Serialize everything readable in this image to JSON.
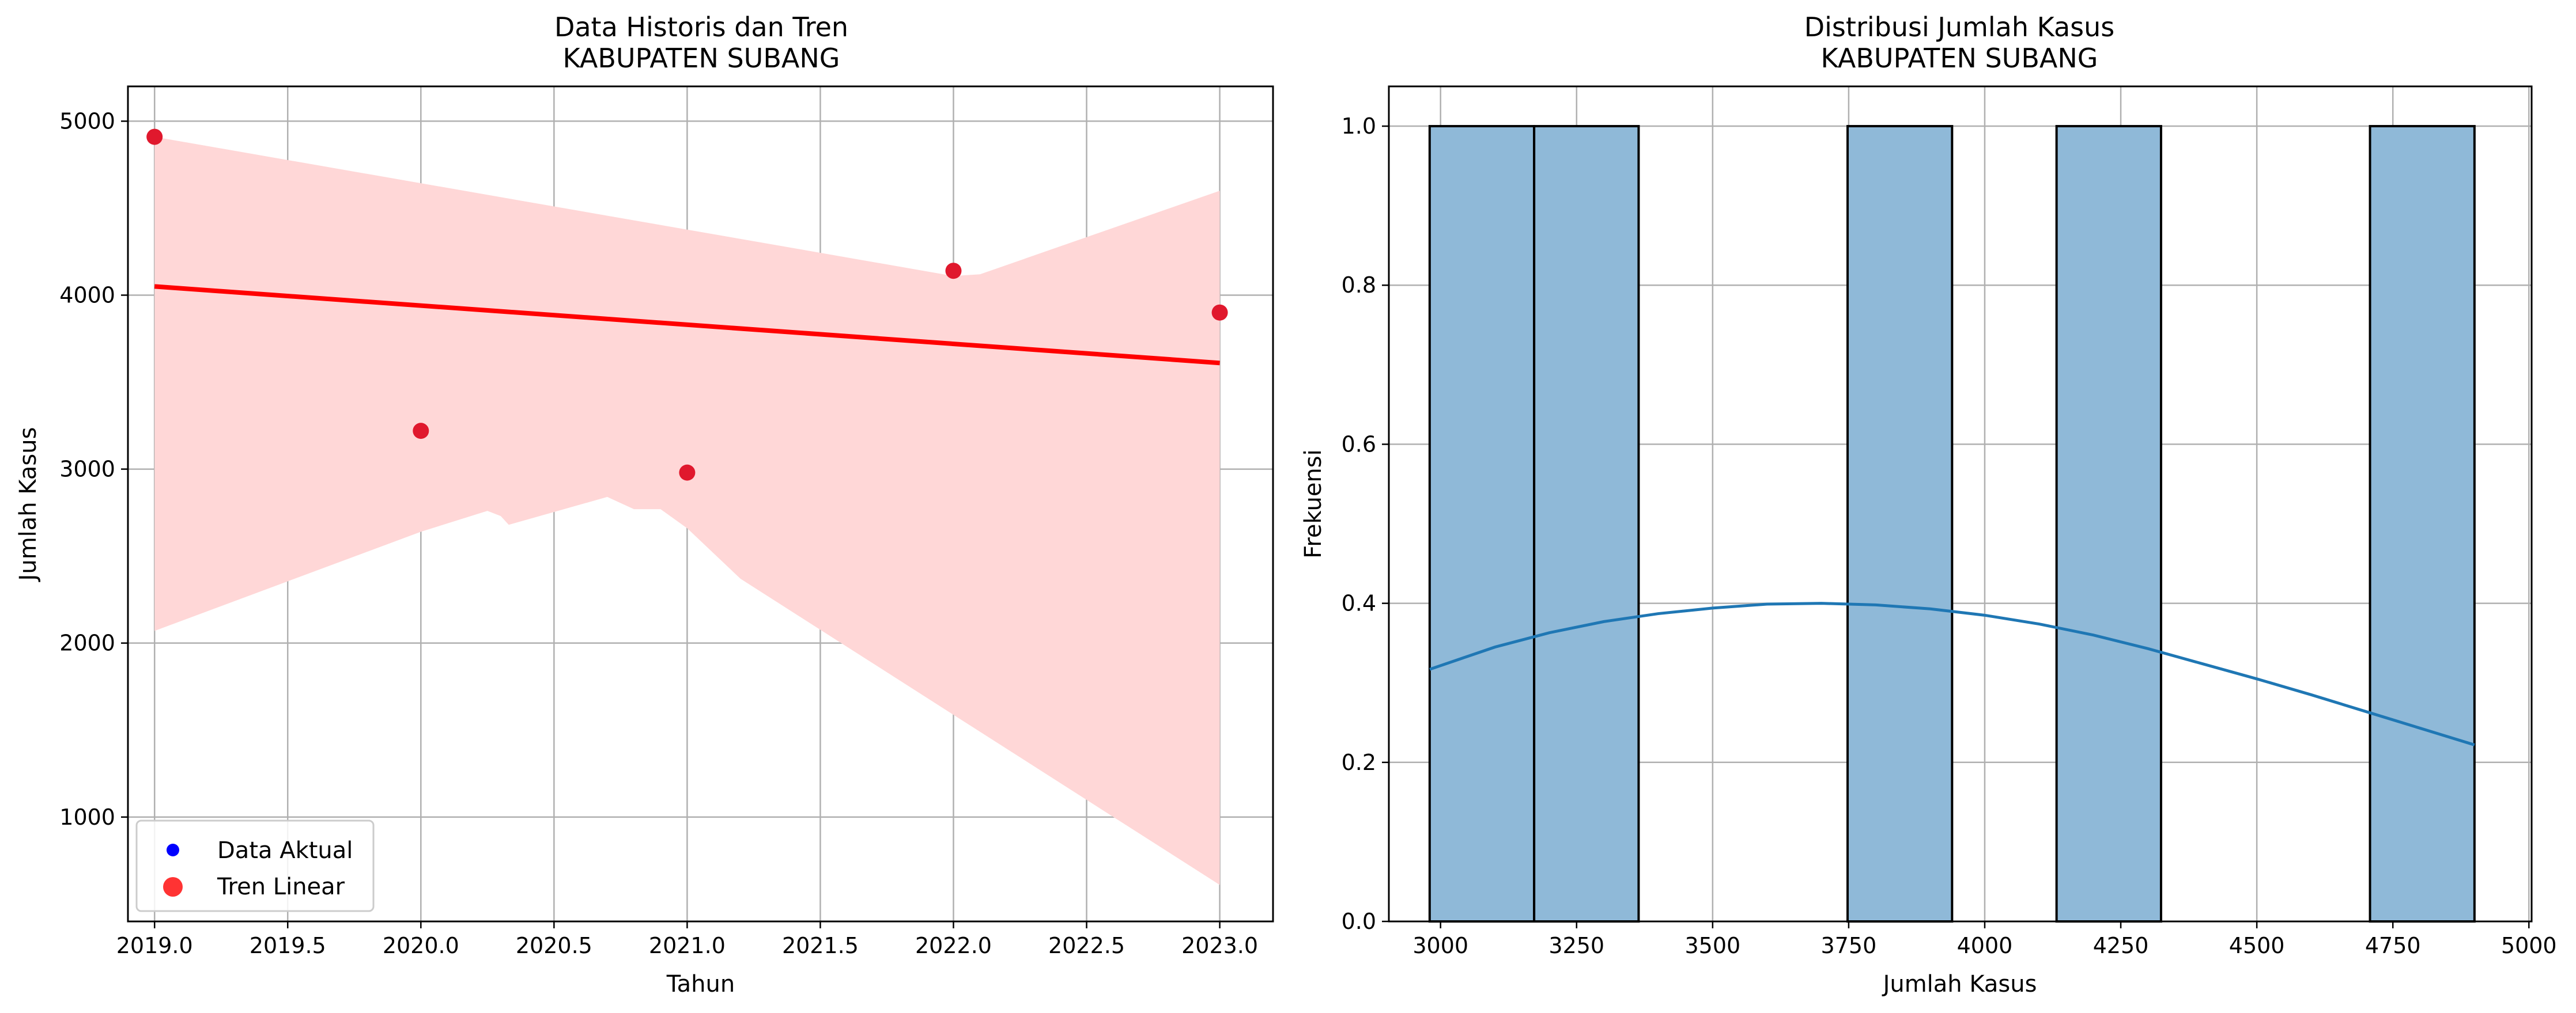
{
  "chart_data": [
    {
      "type": "scatter",
      "title": "Data Historis dan Tren",
      "subtitle": "KABUPATEN SUBANG",
      "xlabel": "Tahun",
      "ylabel": "Jumlah Kasus",
      "xlim": [
        2018.9,
        2023.2
      ],
      "ylim": [
        400,
        5200
      ],
      "xticks": [
        2019.0,
        2019.5,
        2020.0,
        2020.5,
        2021.0,
        2021.5,
        2022.0,
        2022.5,
        2023.0
      ],
      "xtick_labels": [
        "2019.0",
        "2019.5",
        "2020.0",
        "2020.5",
        "2021.0",
        "2021.5",
        "2022.0",
        "2022.5",
        "2023.0"
      ],
      "yticks": [
        1000,
        2000,
        3000,
        4000,
        5000
      ],
      "ytick_labels": [
        "1000",
        "2000",
        "3000",
        "4000",
        "5000"
      ],
      "grid": true,
      "legend_position": "lower-left",
      "legend": [
        {
          "label": "Data Aktual",
          "color": "#0000ff"
        },
        {
          "label": "Tren Linear",
          "color": "#ff0000"
        }
      ],
      "points": {
        "x": [
          2019,
          2020,
          2021,
          2022,
          2023
        ],
        "y": [
          4910,
          3220,
          2980,
          4140,
          3900
        ],
        "color": "#e0182d"
      },
      "trend_line": {
        "x": [
          2019,
          2023
        ],
        "y": [
          4050,
          3610
        ],
        "color": "#ff0000"
      },
      "confidence_band": {
        "color": "#ffd7d7",
        "upper": [
          [
            2019,
            4910
          ],
          [
            2022,
            4110
          ],
          [
            2022.1,
            4120
          ],
          [
            2023,
            4600
          ]
        ],
        "lower": [
          [
            2019,
            2070
          ],
          [
            2020,
            2640
          ],
          [
            2020.25,
            2760
          ],
          [
            2020.3,
            2730
          ],
          [
            2020.33,
            2680
          ],
          [
            2020.7,
            2840
          ],
          [
            2020.8,
            2770
          ],
          [
            2020.9,
            2770
          ],
          [
            2021,
            2660
          ],
          [
            2021.2,
            2370
          ],
          [
            2023,
            610
          ]
        ]
      }
    },
    {
      "type": "bar",
      "title": "Distribusi Jumlah Kasus",
      "subtitle": "KABUPATEN SUBANG",
      "xlabel": "Jumlah Kasus",
      "ylabel": "Frekuensi",
      "xlim": [
        2905,
        5005
      ],
      "ylim": [
        0,
        1.05
      ],
      "xticks": [
        3000,
        3250,
        3500,
        3750,
        4000,
        4250,
        4500,
        4750,
        5000
      ],
      "xtick_labels": [
        "3000",
        "3250",
        "3500",
        "3750",
        "4000",
        "4250",
        "4500",
        "4750",
        "5000"
      ],
      "yticks": [
        0,
        0.2,
        0.4,
        0.6,
        0.8,
        1.0
      ],
      "ytick_labels": [
        "0.0",
        "0.2",
        "0.4",
        "0.6",
        "0.8",
        "1.0"
      ],
      "grid": true,
      "bar_color": "#8fb9d8",
      "bins": [
        {
          "from": 2980,
          "to": 3172,
          "count": 1
        },
        {
          "from": 3172,
          "to": 3364,
          "count": 1
        },
        {
          "from": 3748,
          "to": 3940,
          "count": 1
        },
        {
          "from": 4132,
          "to": 4324,
          "count": 1
        },
        {
          "from": 4708,
          "to": 4900,
          "count": 1
        }
      ],
      "kde": {
        "color": "#1f77b4",
        "x": [
          2980,
          3100,
          3200,
          3300,
          3400,
          3500,
          3600,
          3700,
          3800,
          3900,
          4000,
          4100,
          4200,
          4300,
          4400,
          4500,
          4600,
          4700,
          4800,
          4900
        ],
        "y": [
          0.317,
          0.345,
          0.363,
          0.377,
          0.387,
          0.394,
          0.399,
          0.4,
          0.398,
          0.393,
          0.385,
          0.374,
          0.36,
          0.343,
          0.324,
          0.305,
          0.285,
          0.264,
          0.243,
          0.222
        ]
      }
    }
  ]
}
